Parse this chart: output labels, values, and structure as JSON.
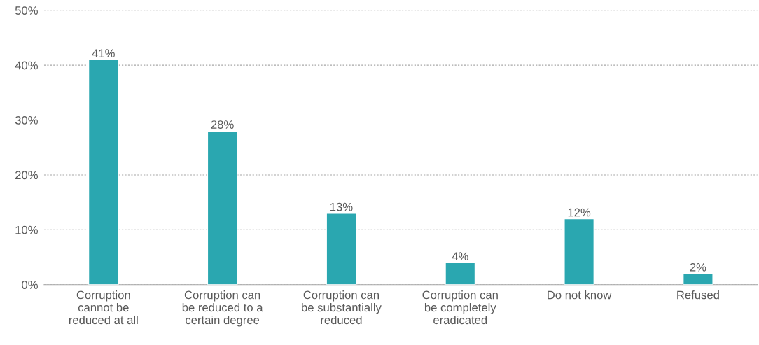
{
  "chart_data": {
    "type": "bar",
    "categories": [
      "Corruption\ncannot be\nreduced at all",
      "Corruption can\nbe reduced to a\ncertain degree",
      "Corruption can\nbe substantially\nreduced",
      "Corruption can\nbe completely\neradicated",
      "Do not know",
      "Refused"
    ],
    "values": [
      41,
      28,
      13,
      4,
      12,
      2
    ],
    "value_labels": [
      "41%",
      "28%",
      "13%",
      "4%",
      "12%",
      "2%"
    ],
    "color": "#2aa7b0",
    "ylim": [
      0,
      50
    ],
    "yticks": [
      {
        "value": 0,
        "label": "0%"
      },
      {
        "value": 10,
        "label": "10%"
      },
      {
        "value": 20,
        "label": "20%"
      },
      {
        "value": 30,
        "label": "30%"
      },
      {
        "value": 40,
        "label": "40%"
      },
      {
        "value": 50,
        "label": "50%"
      }
    ],
    "grid": "y"
  }
}
